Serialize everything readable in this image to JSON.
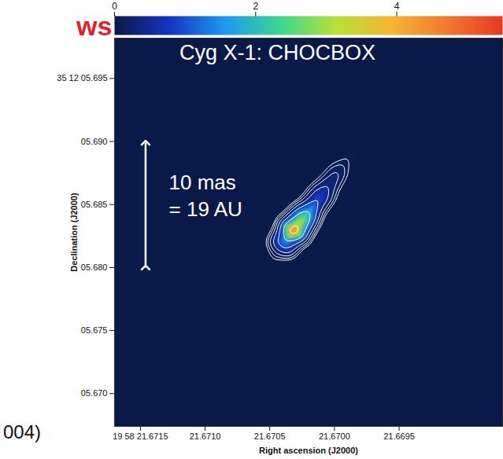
{
  "chart_data": {
    "type": "image",
    "title": "Cyg X-1: CHOCBOX",
    "x_label": "Right ascension (J2000)",
    "y_label": "Declination (J2000)",
    "xlim": [
      21.6717,
      21.6687
    ],
    "xticks": [
      {
        "value": 21.6715,
        "label": "19 58 21.6715"
      },
      {
        "value": 21.671,
        "label": "21.6710"
      },
      21.6705,
      {
        "value": 21.67,
        "label": "21.6700"
      },
      21.6695
    ],
    "ylim": [
      5.6674,
      5.6982
    ],
    "yticks": [
      {
        "value": 5.695,
        "label": "35 12 05.695"
      },
      {
        "value": 5.69,
        "label": "05.690"
      },
      {
        "value": 5.685,
        "label": "05.685"
      },
      {
        "value": 5.68,
        "label": "05.680"
      },
      {
        "value": 5.675,
        "label": "05.675"
      },
      {
        "value": 5.67,
        "label": "05.670"
      }
    ],
    "colorbar": {
      "range": [
        0,
        5.5
      ],
      "ticks": [
        0,
        2,
        4
      ]
    },
    "contour_levels": [
      0.05,
      0.1,
      0.2,
      0.4,
      0.8,
      1.6,
      3.2
    ],
    "cells": [
      {
        "x": 21.67032,
        "y": 5.68288,
        "value": 5.0
      },
      {
        "x": 21.67026,
        "y": 5.68366,
        "value": 3.2
      },
      {
        "x": 21.67019,
        "y": 5.6845,
        "value": 1.8
      },
      {
        "x": 21.67013,
        "y": 5.68534,
        "value": 1.0
      },
      {
        "x": 21.67007,
        "y": 5.68617,
        "value": 0.6
      },
      {
        "x": 21.67001,
        "y": 5.68707,
        "value": 0.35
      },
      {
        "x": 21.66994,
        "y": 5.68797,
        "value": 0.15
      },
      {
        "x": 21.66988,
        "y": 5.68887,
        "value": 0.06
      },
      {
        "x": 21.67038,
        "y": 5.6821,
        "value": 1.6
      },
      {
        "x": 21.67043,
        "y": 5.68132,
        "value": 0.3
      },
      {
        "x": 21.67047,
        "y": 5.68072,
        "value": 0.05
      },
      {
        "x": 21.67021,
        "y": 5.6821,
        "value": 0
      },
      {
        "x": 21.67043,
        "y": 5.68366,
        "value": 0
      },
      {
        "x": 21.67011,
        "y": 5.6839,
        "value": 0
      },
      {
        "x": 21.67028,
        "y": 5.6851,
        "value": 0
      },
      {
        "x": 21.66999,
        "y": 5.68558,
        "value": 0
      },
      {
        "x": 21.67015,
        "y": 5.68677,
        "value": 0
      },
      {
        "x": 21.66988,
        "y": 5.68749,
        "value": 0
      },
      {
        "x": 21.67001,
        "y": 5.68845,
        "value": 0
      },
      {
        "x": 21.67034,
        "y": 5.68072,
        "value": 0
      },
      {
        "x": 21.67052,
        "y": 5.68192,
        "value": 0
      },
      {
        "x": 21.66982,
        "y": 5.68971,
        "value": 0
      },
      {
        "x": 21.67052,
        "y": 5.68012,
        "value": 0
      },
      {
        "x": 21.6717,
        "y": 5.6982,
        "value": 0
      },
      {
        "x": 21.6687,
        "y": 5.6982,
        "value": 0
      },
      {
        "x": 21.6717,
        "y": 5.6674,
        "value": 0
      },
      {
        "x": 21.6687,
        "y": 5.6674,
        "value": 0
      },
      {
        "x": 21.6702,
        "y": 5.6674,
        "value": 0
      },
      {
        "x": 21.6702,
        "y": 5.6982,
        "value": 0
      },
      {
        "x": 21.6717,
        "y": 5.6828,
        "value": 0
      },
      {
        "x": 21.6687,
        "y": 5.6828,
        "value": 0
      }
    ],
    "scale_bar": {
      "x": 21.67146,
      "y_from": 5.68,
      "y_to": 5.6899,
      "text_x": 21.67128,
      "text_y": 5.6858,
      "lines": [
        "10 mas",
        "= 19 AU"
      ]
    }
  },
  "slide_fragments": {
    "heading": "ws",
    "citation": "004)"
  }
}
